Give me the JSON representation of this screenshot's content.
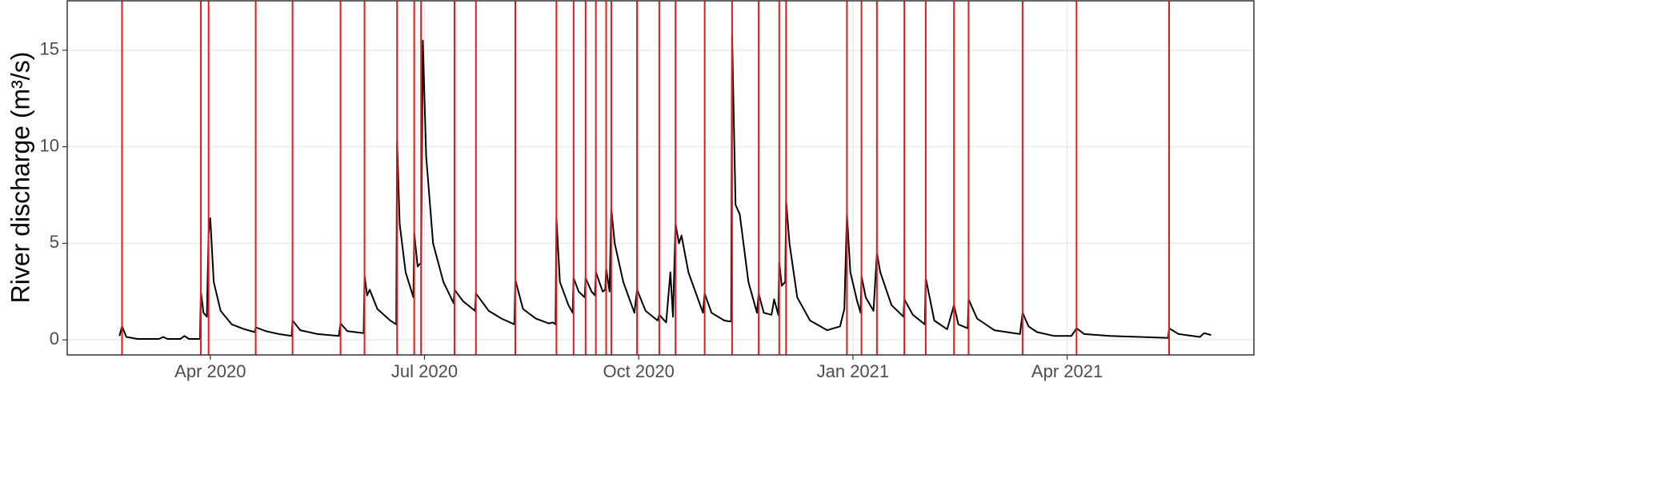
{
  "chart_data": {
    "type": "line",
    "y_label": "River discharge (m³/s)",
    "series": [
      {
        "color": "#000000",
        "x": [
          2020.144,
          2020.147,
          2020.152,
          2020.165,
          2020.19,
          2020.195,
          2020.2,
          2020.215,
          2020.22,
          2020.225,
          2020.238,
          2020.239,
          2020.242,
          2020.246,
          2020.248,
          2020.25,
          2020.254,
          2020.262,
          2020.275,
          2020.29,
          2020.302,
          2020.303,
          2020.315,
          2020.33,
          2020.345,
          2020.346,
          2020.355,
          2020.375,
          2020.4,
          2020.402,
          2020.41,
          2020.429,
          2020.43,
          2020.433,
          2020.436,
          2020.445,
          2020.46,
          2020.467,
          2020.468,
          2020.471,
          2020.478,
          2020.487,
          2020.488,
          2020.492,
          2020.496,
          2020.498,
          2020.502,
          2020.51,
          2020.522,
          2020.534,
          2020.535,
          2020.545,
          2020.559,
          2020.56,
          2020.575,
          2020.59,
          2020.605,
          2020.606,
          2020.615,
          2020.63,
          2020.645,
          2020.65,
          2020.653,
          2020.654,
          2020.658,
          2020.668,
          2020.673,
          2020.674,
          2020.68,
          2020.687,
          2020.688,
          2020.695,
          2020.699,
          2020.7,
          2020.708,
          2020.711,
          2020.712,
          2020.716,
          2020.718,
          2020.722,
          2020.732,
          2020.745,
          2020.748,
          2020.758,
          2020.772,
          2020.774,
          2020.782,
          2020.787,
          2020.79,
          2020.793,
          2020.797,
          2020.8,
          2020.808,
          2020.825,
          2020.827,
          2020.835,
          2020.85,
          2020.858,
          2020.859,
          2020.863,
          2020.868,
          2020.878,
          2020.888,
          2020.89,
          2020.896,
          2020.905,
          2020.908,
          2020.913,
          2020.914,
          2020.917,
          2020.921,
          2020.922,
          2020.926,
          2020.935,
          2020.95,
          2020.97,
          2020.985,
          2020.99,
          2020.993,
          2020.997,
          2021.005,
          2021.009,
          2021.01,
          2021.015,
          2021.024,
          2021.028,
          2021.032,
          2021.045,
          2021.059,
          2021.06,
          2021.07,
          2021.084,
          2021.085,
          2021.095,
          2021.11,
          2021.118,
          2021.123,
          2021.134,
          2021.135,
          2021.145,
          2021.165,
          2021.195,
          2021.198,
          2021.205,
          2021.215,
          2021.235,
          2021.255,
          2021.261,
          2021.27,
          2021.3,
          2021.335,
          2021.368,
          2021.369,
          2021.38,
          2021.405,
          2021.41,
          2021.418
        ],
        "values": [
          0.2,
          0.7,
          0.15,
          0.05,
          0.05,
          0.15,
          0.05,
          0.05,
          0.2,
          0.05,
          0.05,
          2.5,
          1.4,
          1.2,
          5.5,
          6.3,
          3.0,
          1.5,
          0.8,
          0.55,
          0.4,
          0.65,
          0.45,
          0.3,
          0.2,
          1.0,
          0.5,
          0.3,
          0.2,
          0.85,
          0.45,
          0.35,
          3.3,
          2.3,
          2.6,
          1.6,
          1.0,
          0.8,
          10.3,
          6.0,
          3.5,
          2.2,
          5.5,
          3.8,
          4.0,
          15.5,
          9.5,
          5.0,
          3.0,
          1.9,
          2.6,
          2.0,
          1.5,
          2.4,
          1.5,
          1.1,
          0.8,
          3.1,
          1.6,
          1.1,
          0.85,
          0.9,
          0.8,
          6.3,
          3.0,
          1.8,
          1.4,
          3.2,
          2.5,
          2.2,
          3.2,
          2.5,
          2.3,
          3.5,
          2.5,
          2.6,
          3.7,
          2.5,
          6.8,
          5.0,
          3.0,
          1.4,
          2.6,
          1.5,
          1.0,
          1.3,
          0.9,
          3.5,
          1.2,
          6.0,
          5.0,
          5.4,
          3.5,
          1.4,
          2.4,
          1.4,
          1.0,
          0.95,
          15.8,
          7.0,
          6.5,
          3.0,
          1.4,
          2.4,
          1.4,
          1.3,
          2.1,
          1.3,
          4.0,
          2.8,
          3.0,
          7.2,
          5.0,
          2.2,
          1.0,
          0.5,
          0.7,
          1.6,
          6.5,
          3.5,
          2.0,
          1.4,
          3.3,
          2.2,
          1.5,
          4.5,
          3.5,
          1.8,
          1.2,
          2.1,
          1.3,
          0.8,
          3.2,
          1.0,
          0.55,
          1.8,
          0.8,
          0.6,
          2.1,
          1.1,
          0.5,
          0.3,
          1.4,
          0.7,
          0.4,
          0.2,
          0.2,
          0.6,
          0.3,
          0.2,
          0.15,
          0.1,
          0.6,
          0.3,
          0.15,
          0.35,
          0.25
        ]
      }
    ],
    "vlines": [
      2020.147,
      2020.239,
      2020.248,
      2020.303,
      2020.346,
      2020.402,
      2020.43,
      2020.468,
      2020.488,
      2020.496,
      2020.535,
      2020.56,
      2020.606,
      2020.654,
      2020.674,
      2020.688,
      2020.7,
      2020.712,
      2020.718,
      2020.748,
      2020.774,
      2020.793,
      2020.827,
      2020.859,
      2020.89,
      2020.914,
      2020.922,
      2020.993,
      2021.01,
      2021.028,
      2021.06,
      2021.085,
      2021.118,
      2021.135,
      2021.198,
      2021.261,
      2021.369
    ],
    "vline_color": "#e41a1c",
    "xlim": [
      2020.083,
      2021.468
    ],
    "xticks": [
      {
        "value": 2020.25,
        "label": "Apr 2020"
      },
      {
        "value": 2020.5,
        "label": "Jul 2020"
      },
      {
        "value": 2020.75,
        "label": "Oct 2020"
      },
      {
        "value": 2021.0,
        "label": "Jan 2021"
      },
      {
        "value": 2021.25,
        "label": "Apr 2021"
      }
    ],
    "ylim": [
      -0.78,
      17.56
    ],
    "yticks": [
      0,
      5,
      10,
      15
    ],
    "grid": true
  }
}
